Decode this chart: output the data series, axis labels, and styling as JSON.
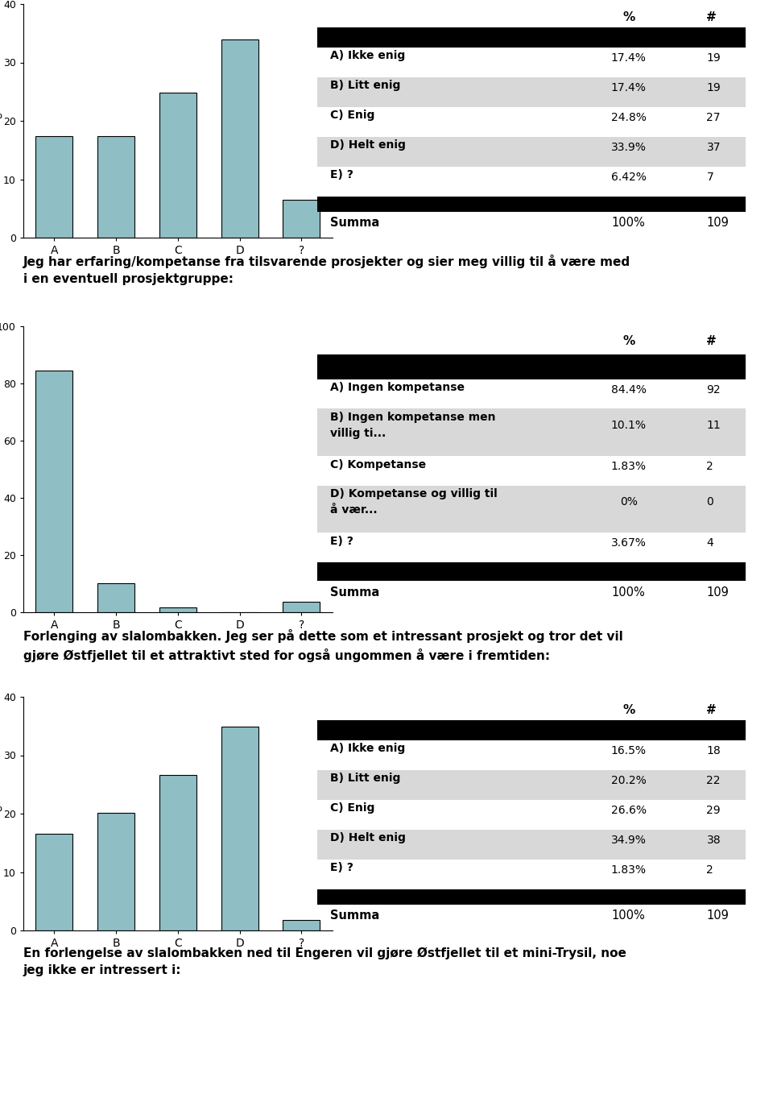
{
  "chart1": {
    "categories": [
      "A",
      "B",
      "C",
      "D",
      "?"
    ],
    "values": [
      17.4,
      17.4,
      24.8,
      33.9,
      6.42
    ],
    "ylim": [
      0,
      40
    ],
    "yticks": [
      0,
      10,
      20,
      30,
      40
    ],
    "table_rows": [
      {
        "label": "A) Ikke enig",
        "pct": "17.4%",
        "n": "19",
        "shaded": false,
        "multiline": false
      },
      {
        "label": "B) Litt enig",
        "pct": "17.4%",
        "n": "19",
        "shaded": true,
        "multiline": false
      },
      {
        "label": "C) Enig",
        "pct": "24.8%",
        "n": "27",
        "shaded": false,
        "multiline": false
      },
      {
        "label": "D) Helt enig",
        "pct": "33.9%",
        "n": "37",
        "shaded": true,
        "multiline": false
      },
      {
        "label": "E) ?",
        "pct": "6.42%",
        "n": "7",
        "shaded": false,
        "multiline": false
      }
    ],
    "summa_pct": "100%",
    "summa_n": "109"
  },
  "text1": "Jeg har erfaring/kompetanse fra tilsvarende prosjekter og sier meg villig til å være med\ni en eventuell prosjektgruppe:",
  "chart2": {
    "categories": [
      "A",
      "B",
      "C",
      "D",
      "?"
    ],
    "values": [
      84.4,
      10.1,
      1.83,
      0,
      3.67
    ],
    "ylim": [
      0,
      100
    ],
    "yticks": [
      0,
      20,
      40,
      60,
      80,
      100
    ],
    "table_rows": [
      {
        "label": "A) Ingen kompetanse",
        "label2": "",
        "pct": "84.4%",
        "n": "92",
        "shaded": false,
        "multiline": false
      },
      {
        "label": "B) Ingen kompetanse men",
        "label2": "villig ti...",
        "pct": "10.1%",
        "n": "11",
        "shaded": true,
        "multiline": true
      },
      {
        "label": "C) Kompetanse",
        "label2": "",
        "pct": "1.83%",
        "n": "2",
        "shaded": false,
        "multiline": false
      },
      {
        "label": "D) Kompetanse og villig til",
        "label2": "å vær...",
        "pct": "0%",
        "n": "0",
        "shaded": true,
        "multiline": true
      },
      {
        "label": "E) ?",
        "label2": "",
        "pct": "3.67%",
        "n": "4",
        "shaded": false,
        "multiline": false
      }
    ],
    "summa_pct": "100%",
    "summa_n": "109"
  },
  "text2": "Forlenging av slalombakken. Jeg ser på dette som et intressant prosjekt og tror det vil\ngjøre Østfjellet til et attraktivt sted for også ungommen å være i fremtiden:",
  "chart3": {
    "categories": [
      "A",
      "B",
      "C",
      "D",
      "?"
    ],
    "values": [
      16.5,
      20.2,
      26.6,
      34.9,
      1.83
    ],
    "ylim": [
      0,
      40
    ],
    "yticks": [
      0,
      10,
      20,
      30,
      40
    ],
    "table_rows": [
      {
        "label": "A) Ikke enig",
        "pct": "16.5%",
        "n": "18",
        "shaded": false,
        "multiline": false
      },
      {
        "label": "B) Litt enig",
        "pct": "20.2%",
        "n": "22",
        "shaded": true,
        "multiline": false
      },
      {
        "label": "C) Enig",
        "pct": "26.6%",
        "n": "29",
        "shaded": false,
        "multiline": false
      },
      {
        "label": "D) Helt enig",
        "pct": "34.9%",
        "n": "38",
        "shaded": true,
        "multiline": false
      },
      {
        "label": "E) ?",
        "pct": "1.83%",
        "n": "2",
        "shaded": false,
        "multiline": false
      }
    ],
    "summa_pct": "100%",
    "summa_n": "109"
  },
  "text3": "En forlengelse av slalombakken ned til Engeren vil gjøre Østfjellet til et mini-Trysil, noe\njeg ikke er intressert i:",
  "bar_color": "#8fbfc4",
  "bar_edge_color": "#000000",
  "background_color": "#ffffff"
}
